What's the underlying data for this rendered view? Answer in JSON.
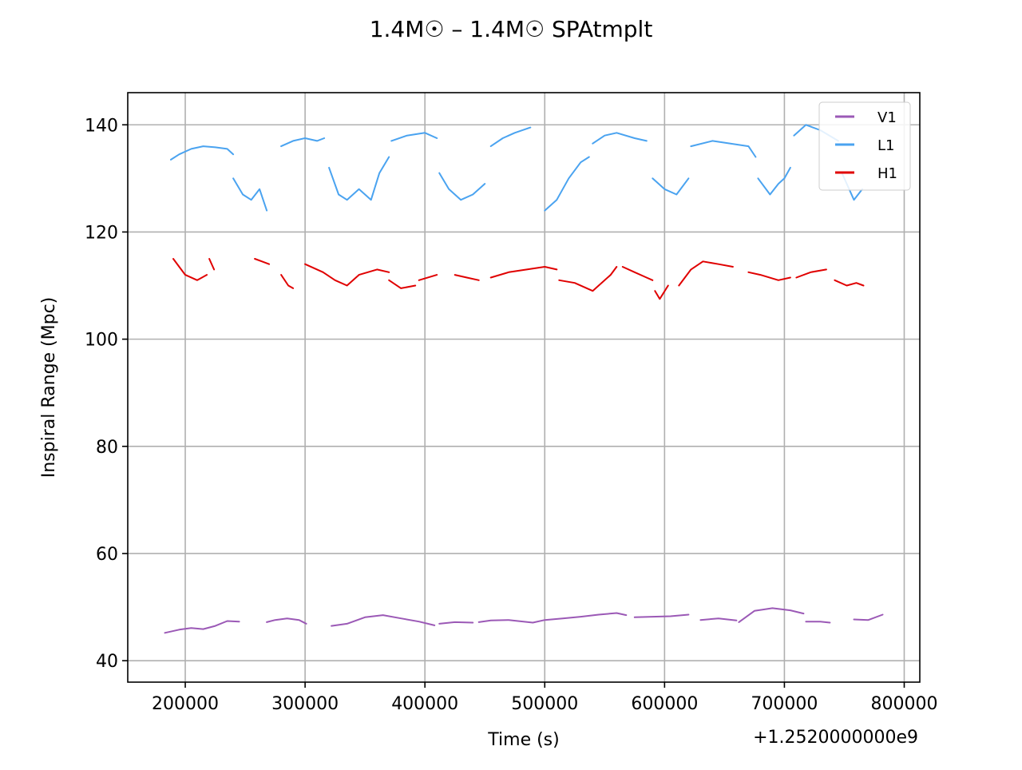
{
  "chart_data": {
    "type": "line",
    "title": "1.4M☉ – 1.4M☉ SPAtmplt",
    "xlabel": "Time (s)",
    "ylabel": "Inspiral Range (Mpc)",
    "x_offset_label": "+1.2520000000e9",
    "xlim": [
      152000,
      813000
    ],
    "ylim": [
      36,
      146
    ],
    "xticks": [
      200000,
      300000,
      400000,
      500000,
      600000,
      700000,
      800000
    ],
    "xtick_labels": [
      "200000",
      "300000",
      "400000",
      "500000",
      "600000",
      "700000",
      "800000"
    ],
    "yticks": [
      40,
      60,
      80,
      100,
      120,
      140
    ],
    "ytick_labels": [
      "40",
      "60",
      "80",
      "100",
      "120",
      "140"
    ],
    "grid": true,
    "legend_position": "top-right",
    "series": [
      {
        "name": "V1",
        "color": "#9b59b6",
        "segments": [
          {
            "x": [
              183000,
              195000,
              205000,
              215000,
              225000,
              235000,
              245000
            ],
            "y": [
              45.2,
              45.8,
              46.1,
              45.9,
              46.5,
              47.4,
              47.3
            ]
          },
          {
            "x": [
              268000,
              275000,
              285000,
              295000,
              301000
            ],
            "y": [
              47.2,
              47.6,
              47.9,
              47.6,
              46.9
            ]
          },
          {
            "x": [
              322000,
              335000,
              350000,
              365000,
              380000,
              395000,
              408000
            ],
            "y": [
              46.5,
              46.9,
              48.1,
              48.5,
              47.9,
              47.3,
              46.6
            ]
          },
          {
            "x": [
              412000,
              425000,
              440000
            ],
            "y": [
              46.9,
              47.2,
              47.1
            ]
          },
          {
            "x": [
              445000,
              455000,
              470000,
              490000,
              500000,
              515000,
              530000,
              545000,
              560000,
              568000
            ],
            "y": [
              47.2,
              47.5,
              47.6,
              47.1,
              47.6,
              47.9,
              48.2,
              48.6,
              48.9,
              48.5
            ]
          },
          {
            "x": [
              575000,
              590000,
              605000,
              620000
            ],
            "y": [
              48.1,
              48.2,
              48.3,
              48.6
            ]
          },
          {
            "x": [
              630000,
              645000,
              660000
            ],
            "y": [
              47.6,
              47.9,
              47.5
            ]
          },
          {
            "x": [
              662000,
              675000,
              690000,
              705000,
              716000
            ],
            "y": [
              47.2,
              49.3,
              49.8,
              49.4,
              48.8
            ]
          },
          {
            "x": [
              718000,
              730000,
              738000
            ],
            "y": [
              47.3,
              47.3,
              47.1
            ]
          },
          {
            "x": [
              758000,
              770000,
              782000
            ],
            "y": [
              47.7,
              47.6,
              48.6
            ]
          }
        ]
      },
      {
        "name": "L1",
        "color": "#4aa3f0",
        "segments": [
          {
            "x": [
              188000,
              195000,
              205000,
              215000,
              225000,
              235000,
              240000
            ],
            "y": [
              133.5,
              134.5,
              135.5,
              136.0,
              135.8,
              135.5,
              134.5
            ]
          },
          {
            "x": [
              240000,
              248000,
              255000,
              262000,
              268000
            ],
            "y": [
              130.0,
              127.0,
              126.0,
              128.0,
              124.0
            ]
          },
          {
            "x": [
              280000,
              290000,
              300000,
              310000,
              316000
            ],
            "y": [
              136.0,
              137.0,
              137.5,
              137.0,
              137.5
            ]
          },
          {
            "x": [
              320000,
              328000,
              335000,
              345000,
              355000,
              362000,
              370000
            ],
            "y": [
              132.0,
              127.0,
              126.0,
              128.0,
              126.0,
              131.0,
              134.0
            ]
          },
          {
            "x": [
              372000,
              385000,
              400000,
              410000
            ],
            "y": [
              137.0,
              138.0,
              138.5,
              137.5
            ]
          },
          {
            "x": [
              412000,
              420000,
              430000,
              440000,
              450000
            ],
            "y": [
              131.0,
              128.0,
              126.0,
              127.0,
              129.0
            ]
          },
          {
            "x": [
              455000,
              465000,
              475000,
              488000
            ],
            "y": [
              136.0,
              137.5,
              138.5,
              139.5
            ]
          },
          {
            "x": [
              500000,
              510000,
              520000,
              530000,
              537000
            ],
            "y": [
              124.0,
              126.0,
              130.0,
              133.0,
              134.0
            ]
          },
          {
            "x": [
              540000,
              550000,
              560000,
              575000,
              585000
            ],
            "y": [
              136.5,
              138.0,
              138.5,
              137.5,
              137.0
            ]
          },
          {
            "x": [
              590000,
              600000,
              610000,
              620000
            ],
            "y": [
              130.0,
              128.0,
              127.0,
              130.0
            ]
          },
          {
            "x": [
              622000,
              640000,
              655000,
              670000,
              676000
            ],
            "y": [
              136.0,
              137.0,
              136.5,
              136.0,
              134.0
            ]
          },
          {
            "x": [
              678000,
              688000,
              695000,
              700000,
              705000
            ],
            "y": [
              130.0,
              127.0,
              129.0,
              130.0,
              132.0
            ]
          },
          {
            "x": [
              708000,
              718000,
              730000,
              745000
            ],
            "y": [
              138.0,
              140.0,
              139.0,
              137.0
            ]
          },
          {
            "x": [
              748000,
              758000,
              765000
            ],
            "y": [
              131.0,
              126.0,
              128.0
            ]
          }
        ]
      },
      {
        "name": "H1",
        "color": "#e00000",
        "segments": [
          {
            "x": [
              190000,
              200000,
              210000,
              218000
            ],
            "y": [
              115.0,
              112.0,
              111.0,
              112.0
            ]
          },
          {
            "x": [
              220000,
              224000
            ],
            "y": [
              115.0,
              113.0
            ]
          },
          {
            "x": [
              258000,
              264000,
              270000
            ],
            "y": [
              115.0,
              114.5,
              114.0
            ]
          },
          {
            "x": [
              280000,
              286000,
              290000
            ],
            "y": [
              112.0,
              110.0,
              109.5
            ]
          },
          {
            "x": [
              300000,
              315000,
              325000,
              335000,
              345000,
              360000,
              370000
            ],
            "y": [
              114.0,
              112.5,
              111.0,
              110.0,
              112.0,
              113.0,
              112.5
            ]
          },
          {
            "x": [
              370000,
              380000,
              392000
            ],
            "y": [
              111.0,
              109.5,
              110.0
            ]
          },
          {
            "x": [
              395000,
              410000
            ],
            "y": [
              111.0,
              112.0
            ]
          },
          {
            "x": [
              425000,
              435000,
              445000
            ],
            "y": [
              112.0,
              111.5,
              111.0
            ]
          },
          {
            "x": [
              455000,
              470000,
              485000,
              500000,
              510000
            ],
            "y": [
              111.5,
              112.5,
              113.0,
              113.5,
              113.0
            ]
          },
          {
            "x": [
              512000,
              525000,
              540000,
              555000,
              560000
            ],
            "y": [
              111.0,
              110.5,
              109.0,
              112.0,
              113.5
            ]
          },
          {
            "x": [
              565000,
              575000,
              585000,
              590000
            ],
            "y": [
              113.5,
              112.5,
              111.5,
              111.0
            ]
          },
          {
            "x": [
              592000,
              596000,
              603000
            ],
            "y": [
              109.0,
              107.5,
              110.0
            ]
          },
          {
            "x": [
              612000,
              622000,
              632000,
              645000,
              657000
            ],
            "y": [
              110.0,
              113.0,
              114.5,
              114.0,
              113.5
            ]
          },
          {
            "x": [
              670000,
              680000,
              695000,
              705000
            ],
            "y": [
              112.5,
              112.0,
              111.0,
              111.5
            ]
          },
          {
            "x": [
              710000,
              722000,
              735000
            ],
            "y": [
              111.5,
              112.5,
              113.0
            ]
          },
          {
            "x": [
              742000,
              752000,
              760000,
              766000
            ],
            "y": [
              111.0,
              110.0,
              110.5,
              110.0
            ]
          }
        ]
      }
    ]
  }
}
